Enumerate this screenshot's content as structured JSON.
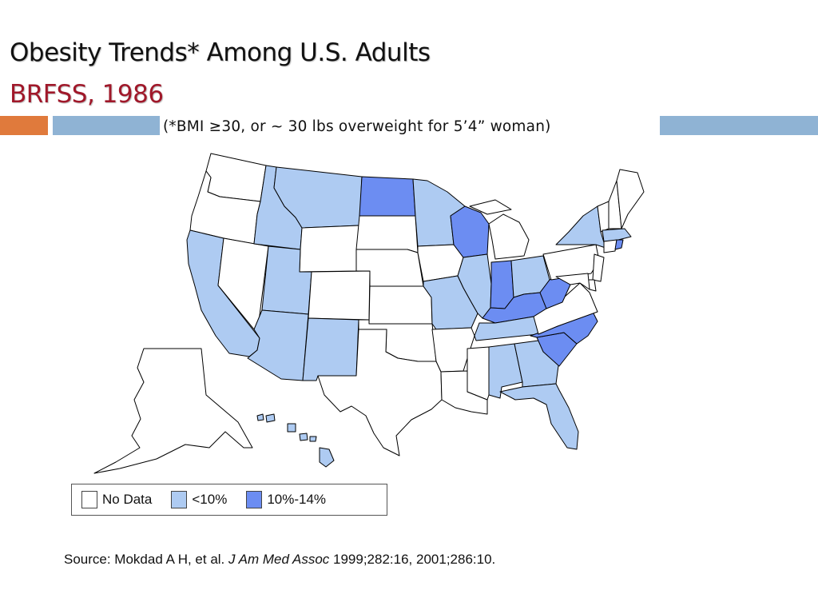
{
  "slide": {
    "title": "Obesity Trends* Among U.S. Adults",
    "subtitle": "BRFSS, 1986",
    "note": "(*BMI ≥30, or ~ 30 lbs overweight for 5’4” woman)",
    "colors": {
      "subtitle": "#a0182a",
      "accent_bar": "#e07a3c",
      "header_bar": "#8fb3d4",
      "border": "#000000"
    }
  },
  "legend": {
    "items": [
      {
        "label": "No Data",
        "color": "#ffffff"
      },
      {
        "label": "<10%",
        "color": "#aecbf2"
      },
      {
        "label": "10%-14%",
        "color": "#6c8df2"
      }
    ]
  },
  "map": {
    "categories": {
      "no_data": "#ffffff",
      "lt10": "#aecbf2",
      "p10_14": "#6c8df2"
    },
    "states": {
      "WA": "no_data",
      "OR": "no_data",
      "CA": "lt10",
      "NV": "no_data",
      "ID": "lt10",
      "MT": "lt10",
      "WY": "no_data",
      "UT": "lt10",
      "AZ": "lt10",
      "NM": "lt10",
      "CO": "no_data",
      "ND": "p10_14",
      "SD": "no_data",
      "NE": "no_data",
      "KS": "no_data",
      "OK": "no_data",
      "TX": "no_data",
      "MN": "lt10",
      "IA": "no_data",
      "MO": "lt10",
      "AR": "no_data",
      "LA": "no_data",
      "WI": "p10_14",
      "IL": "lt10",
      "MS": "no_data",
      "MI": "no_data",
      "IN": "p10_14",
      "KY": "p10_14",
      "TN": "lt10",
      "AL": "lt10",
      "OH": "lt10",
      "WV": "p10_14",
      "VA": "no_data",
      "NC": "p10_14",
      "SC": "p10_14",
      "GA": "lt10",
      "FL": "lt10",
      "PA": "no_data",
      "NY": "lt10",
      "VT": "no_data",
      "NH": "no_data",
      "ME": "no_data",
      "MA": "lt10",
      "RI": "p10_14",
      "CT": "no_data",
      "NJ": "no_data",
      "DE": "no_data",
      "MD": "no_data",
      "AK": "no_data",
      "HI": "lt10"
    }
  },
  "source": {
    "prefix": "Source: Mokdad A H, et al. ",
    "journal": "J Am Med Assoc",
    "suffix": " 1999;282:16, 2001;286:10."
  }
}
